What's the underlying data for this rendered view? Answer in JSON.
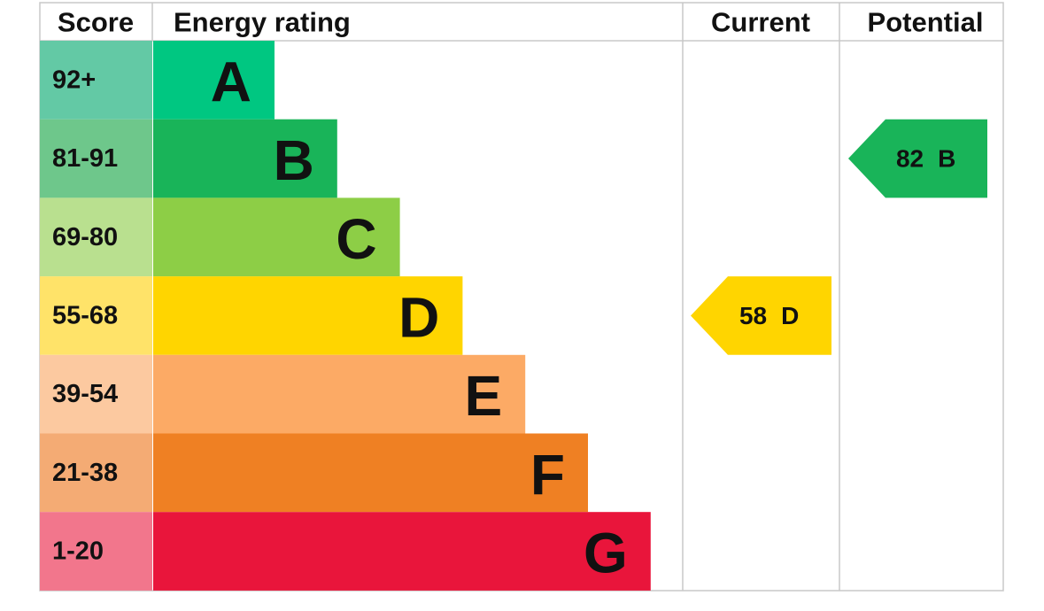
{
  "header": {
    "score": "Score",
    "energy_rating": "Energy rating",
    "current": "Current",
    "potential": "Potential"
  },
  "bands": [
    {
      "range": "92+",
      "letter": "A",
      "color": "#00c781",
      "score_color": "#63c9a5"
    },
    {
      "range": "81-91",
      "letter": "B",
      "color": "#19b459",
      "score_color": "#6ec78b"
    },
    {
      "range": "69-80",
      "letter": "C",
      "color": "#8dce46",
      "score_color": "#b9e08f"
    },
    {
      "range": "55-68",
      "letter": "D",
      "color": "#ffd500",
      "score_color": "#ffe369"
    },
    {
      "range": "39-54",
      "letter": "E",
      "color": "#fcaa65",
      "score_color": "#fcc9a0"
    },
    {
      "range": "21-38",
      "letter": "F",
      "color": "#ef8023",
      "score_color": "#f4ab74"
    },
    {
      "range": "1-20",
      "letter": "G",
      "color": "#e9153b",
      "score_color": "#f2768c"
    }
  ],
  "current": {
    "score": 58,
    "rating": "D"
  },
  "potential": {
    "score": 82,
    "rating": "B"
  }
}
